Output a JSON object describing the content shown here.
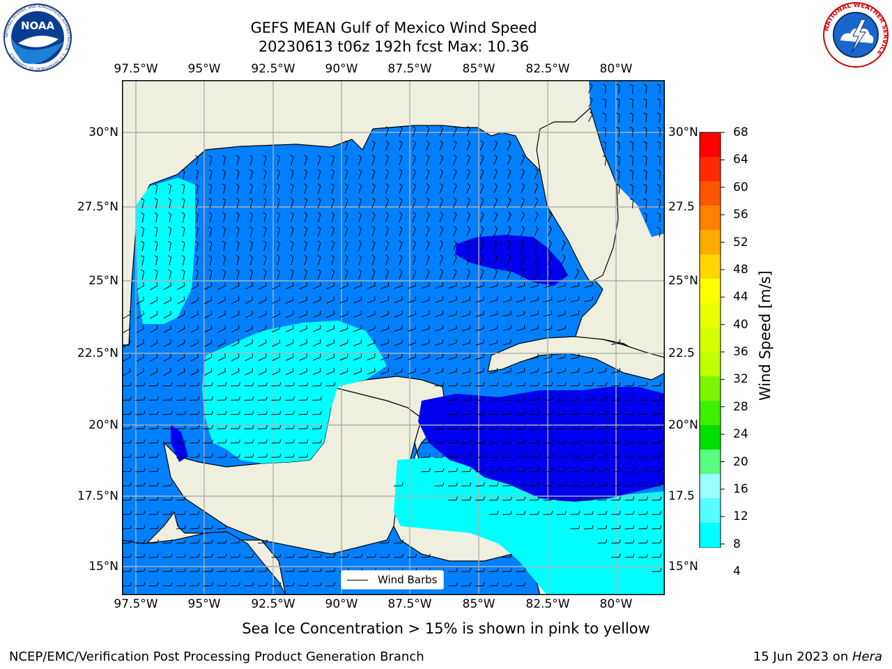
{
  "header": {
    "title_line1": "GEFS MEAN Gulf of Mexico Wind Speed",
    "title_line2": "20230613 t06z 192h fcst   Max: 10.36"
  },
  "logos": {
    "noaa_text": "NOAA",
    "noaa_ring_text": "NATIONAL OCEANIC AND ATMOSPHERIC ADMINISTRATION · U.S. DEPARTMENT OF COMMERCE",
    "nws_ring_text": "NATIONAL WEATHER SERVICE"
  },
  "axes": {
    "lon_labels": [
      "97.5°W",
      "95°W",
      "92.5°W",
      "90°W",
      "87.5°W",
      "85°W",
      "82.5°W",
      "80°W"
    ],
    "lat_labels_left": [
      "30°N",
      "27.5°N",
      "25°N",
      "22.5°N",
      "20°N",
      "17.5°N",
      "15°N"
    ],
    "lat_labels_right": [
      "30°N",
      "27.5",
      "25°N",
      "22.5",
      "20°N",
      "17.5",
      "15°N"
    ]
  },
  "colorbar": {
    "label": "Wind Speed [m/s]",
    "ticks": [
      "68",
      "64",
      "60",
      "56",
      "52",
      "48",
      "44",
      "40",
      "36",
      "32",
      "28",
      "24",
      "20",
      "16",
      "12",
      "8",
      "4"
    ],
    "colors": [
      "#ff0000",
      "#ff2a00",
      "#ff5500",
      "#ff8000",
      "#ffaa00",
      "#ffd500",
      "#ffff00",
      "#eaff00",
      "#d5ff00",
      "#c0ff00",
      "#7cf500",
      "#3cf000",
      "#00e000",
      "#55ff80",
      "#99ffff",
      "#55ffff",
      "#00ffff",
      "#0080ff"
    ],
    "under_color": "#0000ee"
  },
  "legend": {
    "label": "Wind Barbs"
  },
  "caption": "Sea Ice Concentration > 15% is shown in pink to yellow",
  "footer": {
    "left": "NCEP/EMC/Verification Post Processing Product Generation Branch",
    "right_date": "15 Jun 2023 on ",
    "right_host": "Hera"
  },
  "map_colors": {
    "land": "#efefdf",
    "water_low": "#0080ff",
    "water_mid": "#00ffff",
    "water_under": "#0000ee",
    "grid": "#b0b0b0"
  }
}
